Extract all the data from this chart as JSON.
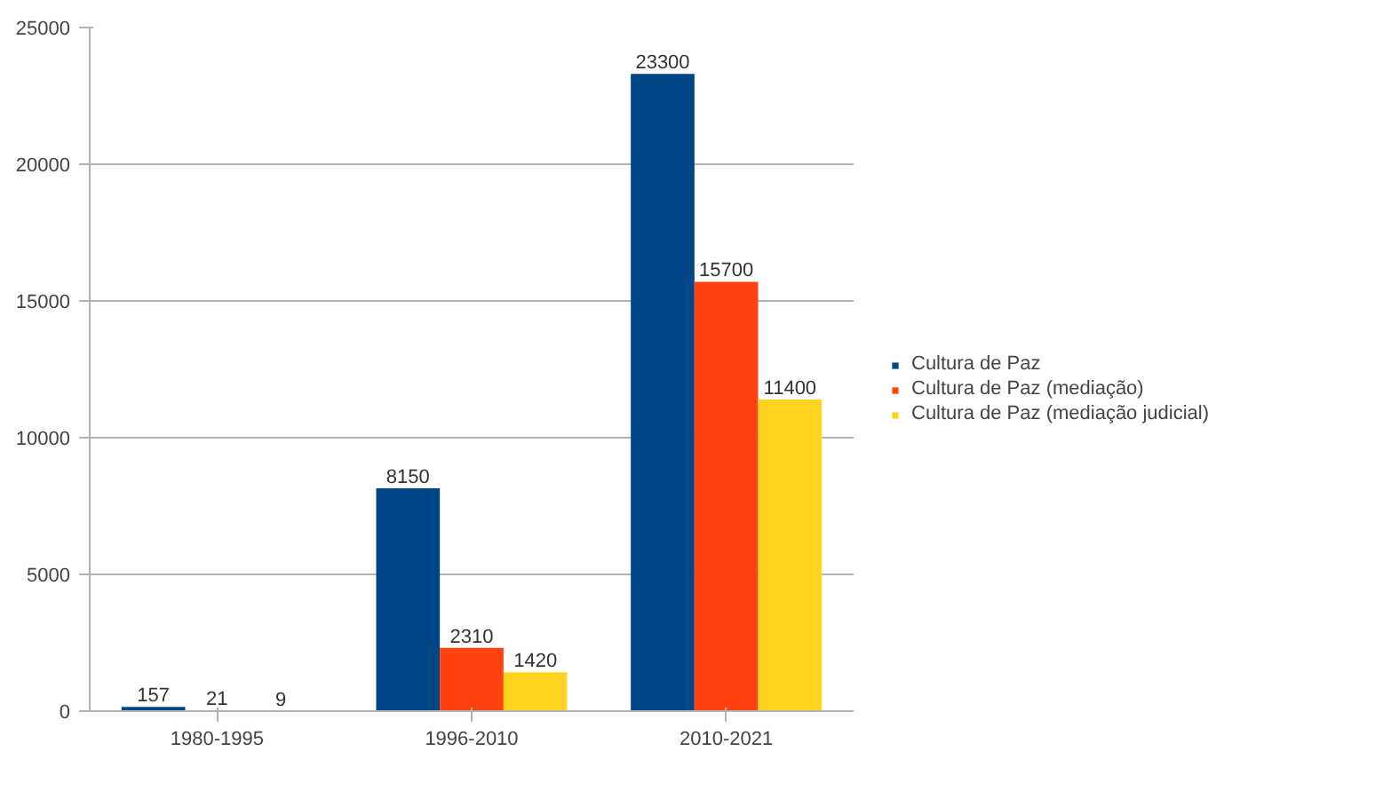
{
  "chart_data": {
    "type": "bar",
    "categories": [
      "1980-1995",
      "1996-2010",
      "2010-2021"
    ],
    "series": [
      {
        "name": "Cultura de Paz",
        "color": "#004586",
        "values": [
          157,
          8150,
          23300
        ]
      },
      {
        "name": "Cultura de Paz (mediação)",
        "color": "#ff420e",
        "values": [
          21,
          2310,
          15700
        ]
      },
      {
        "name": "Cultura de Paz (mediação judicial)",
        "color": "#ffd320",
        "values": [
          9,
          1420,
          11400
        ]
      }
    ],
    "ylim": [
      0,
      25000
    ],
    "yticks": [
      0,
      5000,
      10000,
      15000,
      20000,
      25000
    ],
    "grid": "y",
    "legend": "right",
    "data_labels": true
  }
}
